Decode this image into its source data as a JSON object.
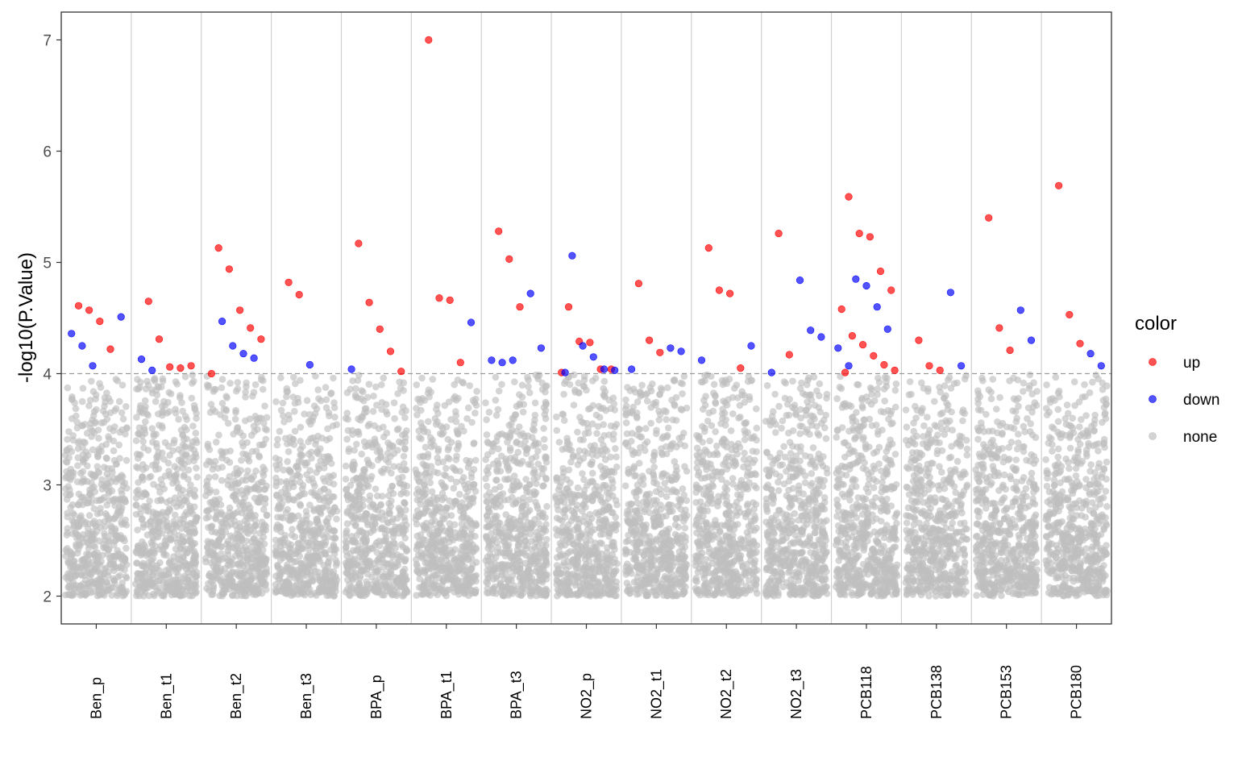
{
  "chart_data": {
    "type": "scatter",
    "ylabel": "-log10(P.Value)",
    "xlabel": "",
    "ylim": [
      1.75,
      7.25
    ],
    "yticks": [
      2,
      3,
      4,
      5,
      6,
      7
    ],
    "threshold": 4,
    "grid": "vertical separators between categories",
    "categories": [
      "Ben_p",
      "Ben_t1",
      "Ben_t2",
      "Ben_t3",
      "BPA_p",
      "BPA_t1",
      "BPA_t3",
      "NO2_p",
      "NO2_t1",
      "NO2_t2",
      "NO2_t3",
      "PCB118",
      "PCB138",
      "PCB153",
      "PCB180"
    ],
    "legend": {
      "title": "color",
      "position": "right",
      "entries": [
        {
          "label": "up",
          "color": "#ff0000"
        },
        {
          "label": "down",
          "color": "#0000ff"
        },
        {
          "label": "none",
          "color": "#bebebe"
        }
      ]
    },
    "background_note": "dense cloud of grey 'none' points between 2 and 4 in every category",
    "significant_points": [
      {
        "category": "Ben_p",
        "y": 4.61,
        "color": "up"
      },
      {
        "category": "Ben_p",
        "y": 4.57,
        "color": "up"
      },
      {
        "category": "Ben_p",
        "y": 4.47,
        "color": "up"
      },
      {
        "category": "Ben_p",
        "y": 4.22,
        "color": "up"
      },
      {
        "category": "Ben_p",
        "y": 4.51,
        "color": "down"
      },
      {
        "category": "Ben_p",
        "y": 4.36,
        "color": "down"
      },
      {
        "category": "Ben_p",
        "y": 4.25,
        "color": "down"
      },
      {
        "category": "Ben_p",
        "y": 4.07,
        "color": "down"
      },
      {
        "category": "Ben_t1",
        "y": 4.65,
        "color": "up"
      },
      {
        "category": "Ben_t1",
        "y": 4.31,
        "color": "up"
      },
      {
        "category": "Ben_t1",
        "y": 4.06,
        "color": "up"
      },
      {
        "category": "Ben_t1",
        "y": 4.05,
        "color": "up"
      },
      {
        "category": "Ben_t1",
        "y": 4.07,
        "color": "up"
      },
      {
        "category": "Ben_t1",
        "y": 4.13,
        "color": "down"
      },
      {
        "category": "Ben_t1",
        "y": 4.03,
        "color": "down"
      },
      {
        "category": "Ben_t2",
        "y": 5.13,
        "color": "up"
      },
      {
        "category": "Ben_t2",
        "y": 4.94,
        "color": "up"
      },
      {
        "category": "Ben_t2",
        "y": 4.57,
        "color": "up"
      },
      {
        "category": "Ben_t2",
        "y": 4.41,
        "color": "up"
      },
      {
        "category": "Ben_t2",
        "y": 4.31,
        "color": "up"
      },
      {
        "category": "Ben_t2",
        "y": 4.0,
        "color": "up"
      },
      {
        "category": "Ben_t2",
        "y": 4.47,
        "color": "down"
      },
      {
        "category": "Ben_t2",
        "y": 4.25,
        "color": "down"
      },
      {
        "category": "Ben_t2",
        "y": 4.18,
        "color": "down"
      },
      {
        "category": "Ben_t2",
        "y": 4.14,
        "color": "down"
      },
      {
        "category": "Ben_t3",
        "y": 4.82,
        "color": "up"
      },
      {
        "category": "Ben_t3",
        "y": 4.71,
        "color": "up"
      },
      {
        "category": "Ben_t3",
        "y": 4.08,
        "color": "down"
      },
      {
        "category": "BPA_p",
        "y": 5.17,
        "color": "up"
      },
      {
        "category": "BPA_p",
        "y": 4.64,
        "color": "up"
      },
      {
        "category": "BPA_p",
        "y": 4.4,
        "color": "up"
      },
      {
        "category": "BPA_p",
        "y": 4.2,
        "color": "up"
      },
      {
        "category": "BPA_p",
        "y": 4.02,
        "color": "up"
      },
      {
        "category": "BPA_p",
        "y": 4.04,
        "color": "down"
      },
      {
        "category": "BPA_t1",
        "y": 7.0,
        "color": "up"
      },
      {
        "category": "BPA_t1",
        "y": 4.68,
        "color": "up"
      },
      {
        "category": "BPA_t1",
        "y": 4.66,
        "color": "up"
      },
      {
        "category": "BPA_t1",
        "y": 4.1,
        "color": "up"
      },
      {
        "category": "BPA_t1",
        "y": 4.46,
        "color": "down"
      },
      {
        "category": "BPA_t3",
        "y": 5.28,
        "color": "up"
      },
      {
        "category": "BPA_t3",
        "y": 5.03,
        "color": "up"
      },
      {
        "category": "BPA_t3",
        "y": 4.6,
        "color": "up"
      },
      {
        "category": "BPA_t3",
        "y": 4.72,
        "color": "down"
      },
      {
        "category": "BPA_t3",
        "y": 4.23,
        "color": "down"
      },
      {
        "category": "BPA_t3",
        "y": 4.12,
        "color": "down"
      },
      {
        "category": "BPA_t3",
        "y": 4.1,
        "color": "down"
      },
      {
        "category": "BPA_t3",
        "y": 4.12,
        "color": "down"
      },
      {
        "category": "NO2_p",
        "y": 4.6,
        "color": "up"
      },
      {
        "category": "NO2_p",
        "y": 4.29,
        "color": "up"
      },
      {
        "category": "NO2_p",
        "y": 4.28,
        "color": "up"
      },
      {
        "category": "NO2_p",
        "y": 4.04,
        "color": "up"
      },
      {
        "category": "NO2_p",
        "y": 4.04,
        "color": "up"
      },
      {
        "category": "NO2_p",
        "y": 4.01,
        "color": "up"
      },
      {
        "category": "NO2_p",
        "y": 5.06,
        "color": "down"
      },
      {
        "category": "NO2_p",
        "y": 4.25,
        "color": "down"
      },
      {
        "category": "NO2_p",
        "y": 4.15,
        "color": "down"
      },
      {
        "category": "NO2_p",
        "y": 4.04,
        "color": "down"
      },
      {
        "category": "NO2_p",
        "y": 4.03,
        "color": "down"
      },
      {
        "category": "NO2_p",
        "y": 4.01,
        "color": "down"
      },
      {
        "category": "NO2_t1",
        "y": 4.81,
        "color": "up"
      },
      {
        "category": "NO2_t1",
        "y": 4.3,
        "color": "up"
      },
      {
        "category": "NO2_t1",
        "y": 4.19,
        "color": "up"
      },
      {
        "category": "NO2_t1",
        "y": 4.23,
        "color": "down"
      },
      {
        "category": "NO2_t1",
        "y": 4.2,
        "color": "down"
      },
      {
        "category": "NO2_t1",
        "y": 4.04,
        "color": "down"
      },
      {
        "category": "NO2_t2",
        "y": 5.13,
        "color": "up"
      },
      {
        "category": "NO2_t2",
        "y": 4.75,
        "color": "up"
      },
      {
        "category": "NO2_t2",
        "y": 4.72,
        "color": "up"
      },
      {
        "category": "NO2_t2",
        "y": 4.05,
        "color": "up"
      },
      {
        "category": "NO2_t2",
        "y": 4.25,
        "color": "down"
      },
      {
        "category": "NO2_t2",
        "y": 4.12,
        "color": "down"
      },
      {
        "category": "NO2_t3",
        "y": 5.26,
        "color": "up"
      },
      {
        "category": "NO2_t3",
        "y": 4.17,
        "color": "up"
      },
      {
        "category": "NO2_t3",
        "y": 4.84,
        "color": "down"
      },
      {
        "category": "NO2_t3",
        "y": 4.39,
        "color": "down"
      },
      {
        "category": "NO2_t3",
        "y": 4.33,
        "color": "down"
      },
      {
        "category": "NO2_t3",
        "y": 4.01,
        "color": "down"
      },
      {
        "category": "PCB118",
        "y": 5.59,
        "color": "up"
      },
      {
        "category": "PCB118",
        "y": 5.26,
        "color": "up"
      },
      {
        "category": "PCB118",
        "y": 5.23,
        "color": "up"
      },
      {
        "category": "PCB118",
        "y": 4.92,
        "color": "up"
      },
      {
        "category": "PCB118",
        "y": 4.75,
        "color": "up"
      },
      {
        "category": "PCB118",
        "y": 4.58,
        "color": "up"
      },
      {
        "category": "PCB118",
        "y": 4.34,
        "color": "up"
      },
      {
        "category": "PCB118",
        "y": 4.26,
        "color": "up"
      },
      {
        "category": "PCB118",
        "y": 4.16,
        "color": "up"
      },
      {
        "category": "PCB118",
        "y": 4.08,
        "color": "up"
      },
      {
        "category": "PCB118",
        "y": 4.03,
        "color": "up"
      },
      {
        "category": "PCB118",
        "y": 4.01,
        "color": "up"
      },
      {
        "category": "PCB118",
        "y": 4.85,
        "color": "down"
      },
      {
        "category": "PCB118",
        "y": 4.79,
        "color": "down"
      },
      {
        "category": "PCB118",
        "y": 4.6,
        "color": "down"
      },
      {
        "category": "PCB118",
        "y": 4.4,
        "color": "down"
      },
      {
        "category": "PCB118",
        "y": 4.23,
        "color": "down"
      },
      {
        "category": "PCB118",
        "y": 4.07,
        "color": "down"
      },
      {
        "category": "PCB138",
        "y": 4.3,
        "color": "up"
      },
      {
        "category": "PCB138",
        "y": 4.07,
        "color": "up"
      },
      {
        "category": "PCB138",
        "y": 4.03,
        "color": "up"
      },
      {
        "category": "PCB138",
        "y": 4.73,
        "color": "down"
      },
      {
        "category": "PCB138",
        "y": 4.07,
        "color": "down"
      },
      {
        "category": "PCB153",
        "y": 5.4,
        "color": "up"
      },
      {
        "category": "PCB153",
        "y": 4.41,
        "color": "up"
      },
      {
        "category": "PCB153",
        "y": 4.21,
        "color": "up"
      },
      {
        "category": "PCB153",
        "y": 4.57,
        "color": "down"
      },
      {
        "category": "PCB153",
        "y": 4.3,
        "color": "down"
      },
      {
        "category": "PCB180",
        "y": 5.69,
        "color": "up"
      },
      {
        "category": "PCB180",
        "y": 4.53,
        "color": "up"
      },
      {
        "category": "PCB180",
        "y": 4.27,
        "color": "up"
      },
      {
        "category": "PCB180",
        "y": 4.18,
        "color": "down"
      },
      {
        "category": "PCB180",
        "y": 4.07,
        "color": "down"
      }
    ]
  }
}
